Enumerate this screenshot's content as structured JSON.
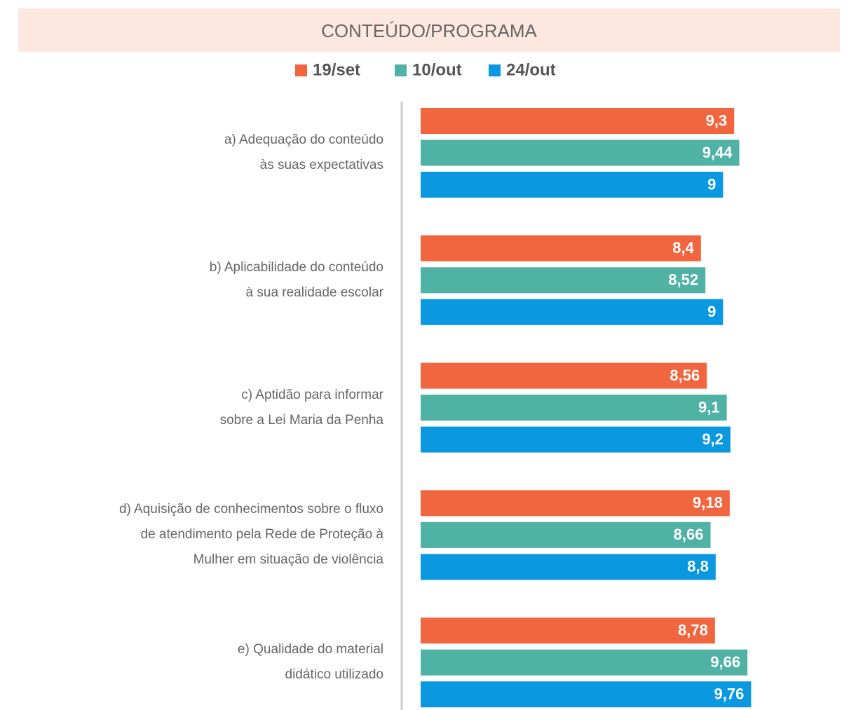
{
  "chart_data": {
    "type": "barh",
    "title": "CONTEÚDO/PROGRAMA",
    "categories": [
      "a) Adequação do conteúdo\nàs suas expectativas",
      "b) Aplicabilidade do conteúdo\nà sua realidade escolar",
      "c) Aptidão para informar\nsobre a Lei Maria da Penha",
      "d) Aquisição de conhecimentos sobre o fluxo\nde atendimento pela Rede de Proteção à\nMulher em situação de violência",
      "e) Qualidade do material\ndidático utilizado"
    ],
    "series": [
      {
        "name": "19/set",
        "color": "#f1653f",
        "values": [
          9.3,
          8.4,
          8.56,
          9.18,
          8.78
        ],
        "value_labels": [
          "9,3",
          "8,4",
          "8,56",
          "9,18",
          "8,78"
        ]
      },
      {
        "name": "10/out",
        "color": "#4fb2a4",
        "values": [
          9.44,
          8.52,
          9.1,
          8.66,
          9.66
        ],
        "value_labels": [
          "9,44",
          "8,52",
          "9,1",
          "8,66",
          "9,66"
        ]
      },
      {
        "name": "24/out",
        "color": "#0a98e0",
        "values": [
          9,
          9,
          9.2,
          8.8,
          9.76
        ],
        "value_labels": [
          "9",
          "9",
          "9,2",
          "8,8",
          "9,76"
        ]
      }
    ],
    "xlim": [
      0.8,
      10
    ]
  }
}
